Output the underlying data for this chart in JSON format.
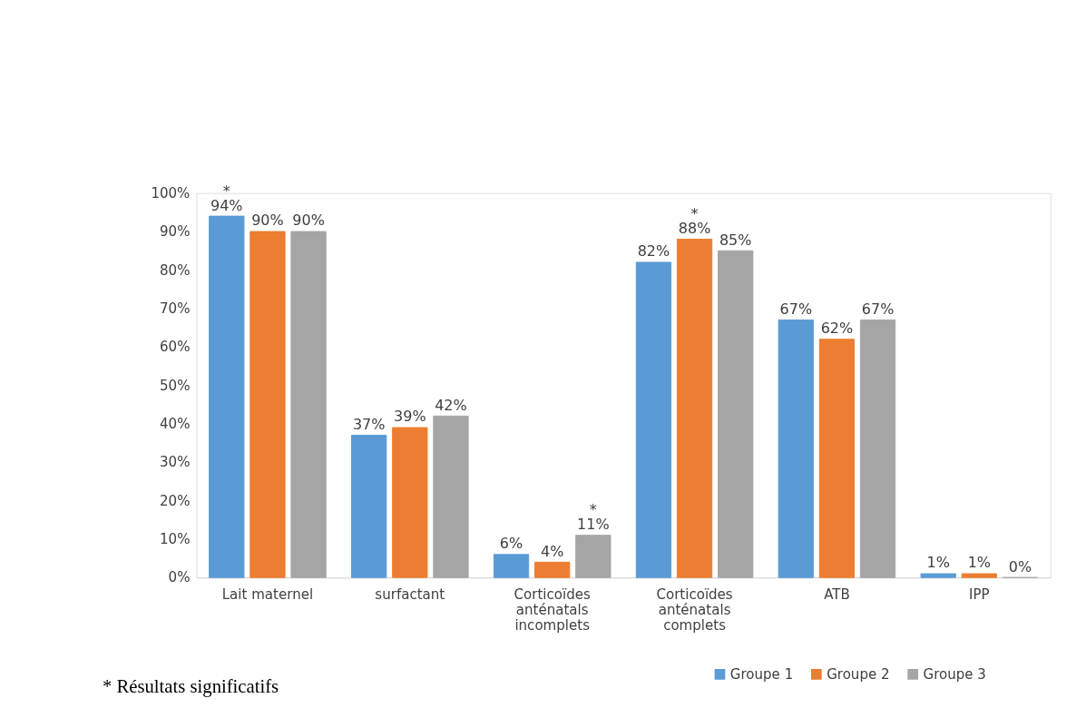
{
  "chart_data": {
    "type": "bar",
    "categories": [
      "Lait maternel",
      "surfactant",
      "Corticoïdes anténatals incomplets",
      "Corticoïdes anténatals complets",
      "ATB",
      "IPP"
    ],
    "series": [
      {
        "name": "Groupe 1",
        "color": "#5b9bd5",
        "values": [
          94,
          37,
          6,
          82,
          67,
          1
        ],
        "value_labels": [
          "*\n94%",
          "37%",
          "6%",
          "82%",
          "67%",
          "1%"
        ]
      },
      {
        "name": "Groupe 2",
        "color": "#ed7d31",
        "values": [
          90,
          39,
          4,
          88,
          62,
          1
        ],
        "value_labels": [
          "90%",
          "39%",
          "4%",
          "*\n88%",
          "62%",
          "1%"
        ]
      },
      {
        "name": "Groupe 3",
        "color": "#a5a5a5",
        "values": [
          90,
          42,
          11,
          85,
          67,
          0
        ],
        "value_labels": [
          "90%",
          "42%",
          "*\n11%",
          "85%",
          "67%",
          "0%"
        ]
      }
    ],
    "ylim": [
      0,
      100
    ],
    "yticks": [
      {
        "value": 0,
        "label": "0%"
      },
      {
        "value": 10,
        "label": "10%"
      },
      {
        "value": 20,
        "label": "20%"
      },
      {
        "value": 30,
        "label": "30%"
      },
      {
        "value": 40,
        "label": "40%"
      },
      {
        "value": 50,
        "label": "50%"
      },
      {
        "value": 60,
        "label": "60%"
      },
      {
        "value": 70,
        "label": "70%"
      },
      {
        "value": 80,
        "label": "80%"
      },
      {
        "value": 90,
        "label": "90%"
      },
      {
        "value": 100,
        "label": "100%"
      }
    ],
    "grid": false,
    "legend": "bottom right",
    "annotations": [
      "* Résultats significatifs"
    ]
  }
}
